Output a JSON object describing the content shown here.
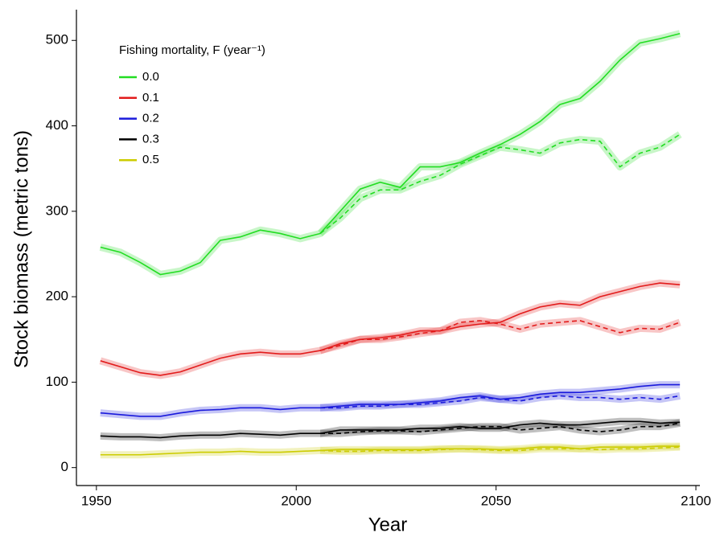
{
  "chart_data": {
    "type": "line",
    "x_label": "Year",
    "y_label": "Stock biomass (metric tons)",
    "legend_title": "Fishing mortality, F (year⁻¹)",
    "xlim": [
      1945,
      2101
    ],
    "xticks": [
      1950,
      2000,
      2050,
      2100
    ],
    "ylim": [
      -21,
      536
    ],
    "yticks": [
      0,
      100,
      200,
      300,
      400,
      500
    ],
    "legend": "top-left",
    "x": [
      1951,
      1956,
      1961,
      1966,
      1971,
      1976,
      1981,
      1986,
      1991,
      1996,
      2001,
      2006,
      2011,
      2016,
      2021,
      2026,
      2031,
      2036,
      2041,
      2046,
      2051,
      2056,
      2061,
      2066,
      2071,
      2076,
      2081,
      2086,
      2091,
      2096
    ],
    "series": [
      {
        "name": "0.0",
        "color": "#22dd22",
        "values": [
          258,
          252,
          240,
          226,
          230,
          240,
          266,
          270,
          278,
          274,
          268,
          274,
          300,
          326,
          334,
          328,
          352,
          352,
          357,
          368,
          378,
          390,
          405,
          425,
          432,
          452,
          477,
          497,
          502,
          508
        ],
        "alt_values": [
          null,
          null,
          null,
          null,
          null,
          null,
          null,
          null,
          null,
          null,
          null,
          274,
          292,
          315,
          325,
          325,
          335,
          342,
          355,
          365,
          375,
          372,
          368,
          380,
          384,
          382,
          352,
          368,
          375,
          390
        ]
      },
      {
        "name": "0.1",
        "color": "#e21b1b",
        "values": [
          125,
          118,
          111,
          108,
          112,
          120,
          128,
          133,
          135,
          133,
          133,
          137,
          145,
          150,
          152,
          155,
          160,
          160,
          165,
          168,
          170,
          180,
          188,
          192,
          190,
          200,
          206,
          212,
          216,
          214
        ],
        "alt_values": [
          null,
          null,
          null,
          null,
          null,
          null,
          null,
          null,
          null,
          null,
          null,
          137,
          143,
          150,
          150,
          153,
          157,
          160,
          170,
          172,
          168,
          162,
          168,
          170,
          172,
          165,
          158,
          163,
          162,
          170
        ]
      },
      {
        "name": "0.2",
        "color": "#1a1adc",
        "values": [
          64,
          62,
          60,
          60,
          64,
          67,
          68,
          70,
          70,
          68,
          70,
          70,
          72,
          74,
          74,
          74,
          76,
          78,
          82,
          84,
          80,
          82,
          86,
          88,
          88,
          90,
          92,
          95,
          97,
          97
        ],
        "alt_values": [
          null,
          null,
          null,
          null,
          null,
          null,
          null,
          null,
          null,
          null,
          null,
          70,
          70,
          72,
          72,
          74,
          74,
          76,
          78,
          82,
          80,
          78,
          82,
          84,
          82,
          82,
          80,
          82,
          80,
          84
        ]
      },
      {
        "name": "0.3",
        "color": "#000000",
        "values": [
          37,
          36,
          36,
          35,
          37,
          38,
          38,
          40,
          39,
          38,
          40,
          40,
          44,
          44,
          44,
          44,
          46,
          46,
          48,
          46,
          46,
          50,
          52,
          50,
          50,
          52,
          54,
          54,
          52,
          53
        ],
        "alt_values": [
          null,
          null,
          null,
          null,
          null,
          null,
          null,
          null,
          null,
          null,
          null,
          40,
          40,
          42,
          43,
          43,
          42,
          44,
          46,
          48,
          48,
          44,
          46,
          48,
          44,
          42,
          44,
          48,
          48,
          52
        ]
      },
      {
        "name": "0.5",
        "color": "#cccc00",
        "values": [
          15,
          15,
          15,
          16,
          17,
          18,
          18,
          19,
          18,
          18,
          19,
          20,
          21,
          21,
          21,
          21,
          21,
          22,
          22,
          22,
          21,
          22,
          24,
          24,
          22,
          24,
          24,
          24,
          25,
          25
        ],
        "alt_values": [
          null,
          null,
          null,
          null,
          null,
          null,
          null,
          null,
          null,
          null,
          null,
          20,
          19,
          19,
          20,
          20,
          20,
          21,
          22,
          21,
          20,
          20,
          22,
          22,
          22,
          21,
          22,
          22,
          23,
          24
        ]
      }
    ]
  }
}
